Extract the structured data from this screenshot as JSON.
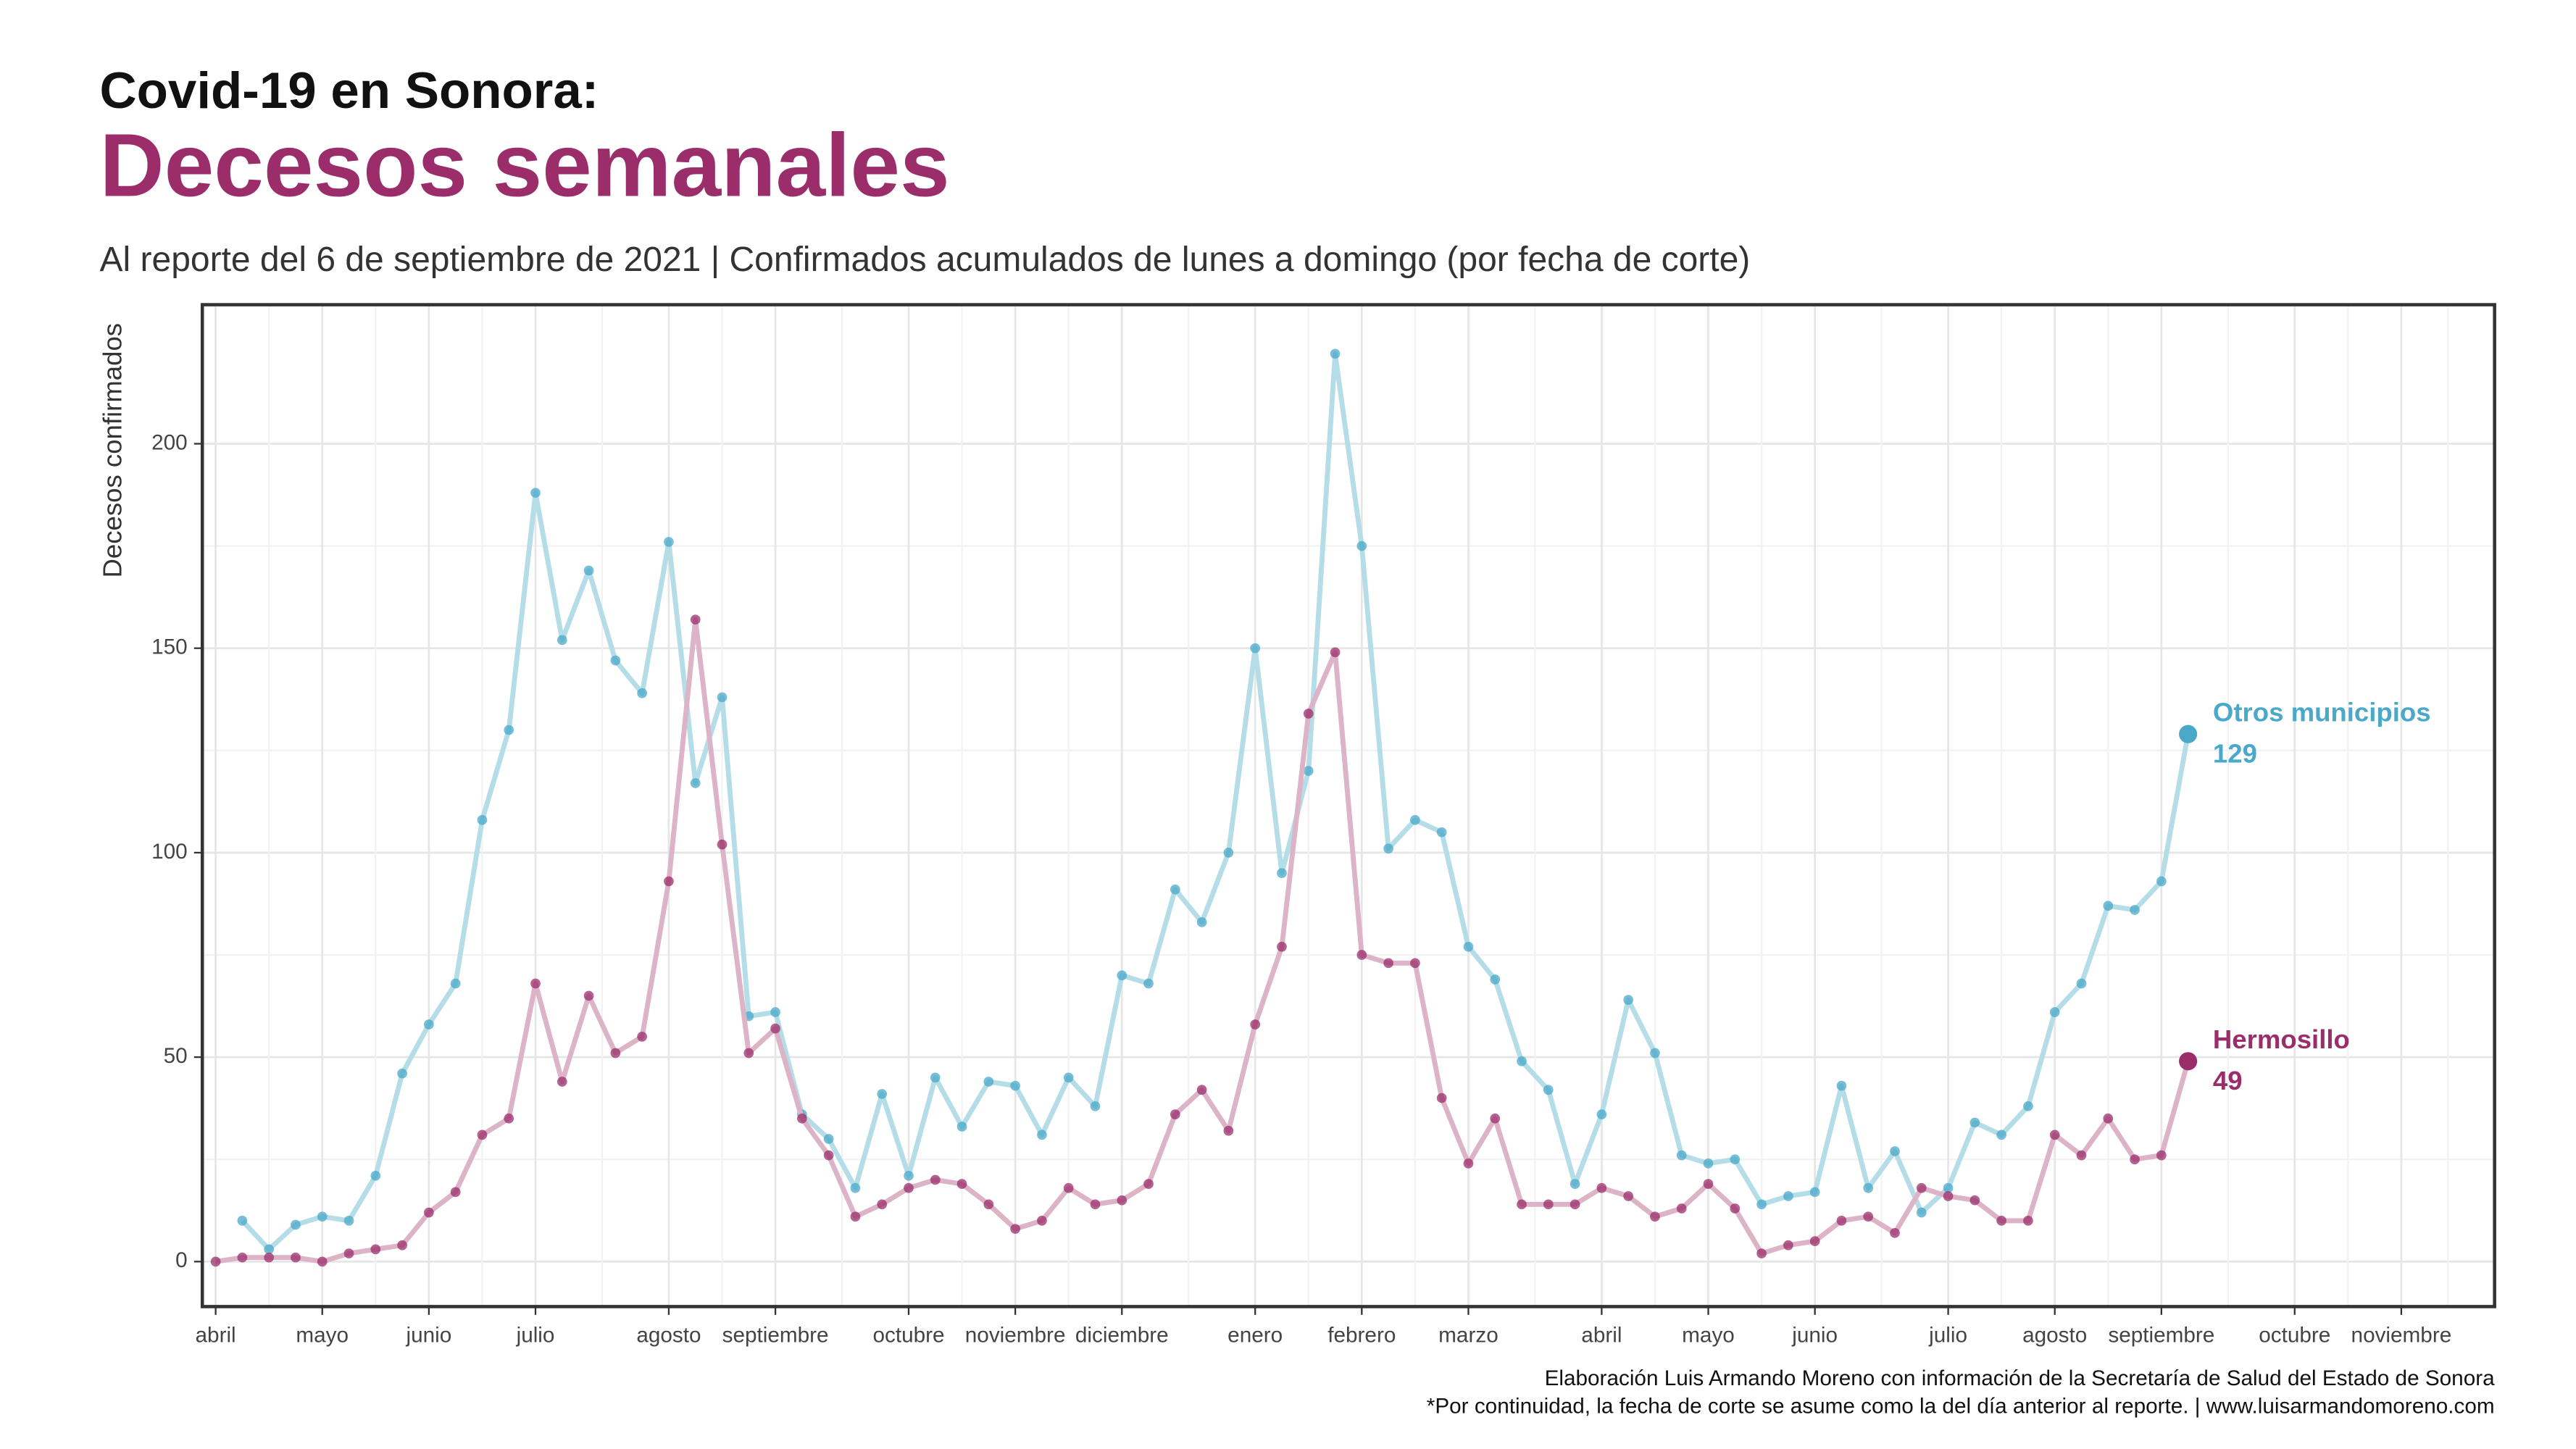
{
  "chart_data": {
    "type": "line",
    "title": "Covid-19 en Sonora:",
    "headline": "Decesos semanales",
    "subtitle": "Al reporte del 6 de septiembre de 2021 | Confirmados acumulados de lunes a domingo (por fecha de corte)",
    "y_label": "Decesos confirmados",
    "caption": [
      "Elaboración Luis Armando Moreno con información de la Secretaría de Salud del Estado de Sonora",
      "*Por continuidad, la fecha de corte se asume como la del día anterior al reporte. | www.luisarmandomoreno.com"
    ],
    "categories": [
      "abril",
      null,
      null,
      null,
      "mayo",
      null,
      null,
      null,
      "junio",
      null,
      null,
      null,
      "julio",
      null,
      null,
      null,
      null,
      "agosto",
      null,
      null,
      null,
      "septiembre",
      null,
      null,
      null,
      null,
      "octubre",
      null,
      null,
      null,
      "noviembre",
      null,
      null,
      null,
      "diciembre",
      null,
      null,
      null,
      null,
      "enero",
      null,
      null,
      null,
      "febrero",
      null,
      null,
      null,
      "marzo",
      null,
      null,
      null,
      null,
      "abril",
      null,
      null,
      null,
      "mayo",
      null,
      null,
      null,
      "junio",
      null,
      null,
      null,
      null,
      "julio",
      null,
      null,
      null,
      "agosto",
      null,
      null,
      null,
      "septiembre",
      null,
      null,
      null,
      null,
      "octubre",
      null,
      null,
      null,
      "noviembre",
      null,
      null,
      null
    ],
    "series": [
      {
        "name": "Otros municipios",
        "color": "#4aa8c8",
        "line_color": "#b5dde8",
        "values": [
          null,
          10,
          3,
          9,
          11,
          10,
          21,
          46,
          58,
          68,
          108,
          130,
          188,
          152,
          169,
          147,
          139,
          176,
          117,
          138,
          60,
          61,
          36,
          30,
          18,
          41,
          21,
          45,
          33,
          44,
          43,
          31,
          45,
          38,
          70,
          68,
          91,
          83,
          100,
          150,
          95,
          120,
          222,
          175,
          101,
          108,
          105,
          77,
          69,
          49,
          42,
          19,
          36,
          64,
          51,
          26,
          24,
          25,
          14,
          16,
          17,
          43,
          18,
          27,
          12,
          18,
          34,
          31,
          38,
          61,
          68,
          87,
          86,
          93,
          129,
          null,
          null,
          null,
          null,
          null,
          null,
          null,
          null,
          null,
          null,
          null
        ]
      },
      {
        "name": "Hermosillo",
        "color": "#9b2d6b",
        "line_color": "#dcb3c7",
        "values": [
          0,
          1,
          1,
          1,
          0,
          2,
          3,
          4,
          12,
          17,
          31,
          35,
          68,
          44,
          65,
          51,
          55,
          93,
          157,
          102,
          51,
          57,
          35,
          26,
          11,
          14,
          18,
          20,
          19,
          14,
          8,
          10,
          18,
          14,
          15,
          19,
          36,
          42,
          32,
          58,
          77,
          134,
          149,
          75,
          73,
          73,
          40,
          24,
          35,
          14,
          14,
          14,
          18,
          16,
          11,
          13,
          19,
          13,
          2,
          4,
          5,
          10,
          11,
          7,
          18,
          16,
          15,
          10,
          10,
          31,
          26,
          35,
          25,
          26,
          49,
          null,
          null,
          null,
          null,
          null,
          null,
          null,
          null,
          null,
          null,
          null
        ]
      }
    ],
    "ylim": [
      -11,
      234
    ],
    "yticks": [
      0,
      50,
      100,
      150,
      200
    ],
    "grid": true
  }
}
